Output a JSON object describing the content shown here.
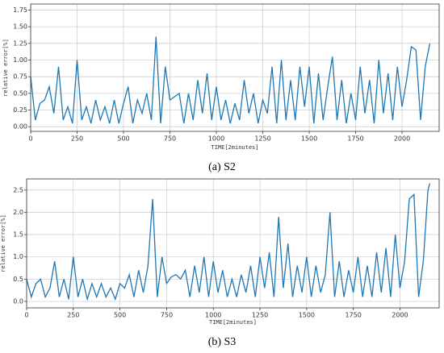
{
  "chart_data": [
    {
      "type": "line",
      "caption": "(a) S2",
      "xlabel": "TIME[2minutes]",
      "ylabel": "relative error[%]",
      "xlim": [
        0,
        2200
      ],
      "ylim": [
        -0.07,
        1.84
      ],
      "grid": true,
      "xticks": [
        0,
        250,
        500,
        750,
        1000,
        1250,
        1500,
        1750,
        2000
      ],
      "yticks": [
        {
          "value": 0,
          "label": "0.00"
        },
        {
          "value": 0.25,
          "label": "0.25"
        },
        {
          "value": 0.5,
          "label": "0.50"
        },
        {
          "value": 0.75,
          "label": "0.75"
        },
        {
          "value": 1,
          "label": "1.00"
        },
        {
          "value": 1.25,
          "label": "1.25"
        },
        {
          "value": 1.5,
          "label": "1.50"
        },
        {
          "value": 1.75,
          "label": "1.75"
        }
      ],
      "x": [
        0,
        25,
        50,
        75,
        100,
        125,
        150,
        175,
        200,
        225,
        250,
        275,
        300,
        325,
        350,
        375,
        400,
        425,
        450,
        475,
        500,
        525,
        550,
        575,
        600,
        625,
        650,
        675,
        700,
        725,
        750,
        775,
        800,
        825,
        850,
        875,
        900,
        925,
        950,
        975,
        1000,
        1025,
        1050,
        1075,
        1100,
        1125,
        1150,
        1175,
        1200,
        1225,
        1250,
        1275,
        1300,
        1325,
        1350,
        1375,
        1400,
        1425,
        1450,
        1475,
        1500,
        1525,
        1550,
        1575,
        1600,
        1625,
        1650,
        1675,
        1700,
        1725,
        1750,
        1775,
        1800,
        1825,
        1850,
        1875,
        1900,
        1925,
        1950,
        1975,
        2000,
        2025,
        2050,
        2075,
        2100,
        2125,
        2150
      ],
      "series": [
        {
          "color": "#1f77b4",
          "values": [
            0.75,
            0.1,
            0.35,
            0.4,
            0.6,
            0.2,
            0.9,
            0.1,
            0.3,
            0.05,
            1.0,
            0.1,
            0.3,
            0.05,
            0.4,
            0.1,
            0.3,
            0.05,
            0.4,
            0.05,
            0.35,
            0.6,
            0.05,
            0.4,
            0.2,
            0.5,
            0.1,
            1.35,
            0.05,
            0.9,
            0.4,
            0.45,
            0.5,
            0.05,
            0.5,
            0.1,
            0.7,
            0.2,
            0.8,
            0.1,
            0.6,
            0.1,
            0.4,
            0.05,
            0.35,
            0.1,
            0.7,
            0.2,
            0.5,
            0.05,
            0.4,
            0.2,
            0.9,
            0.05,
            1.0,
            0.1,
            0.7,
            0.1,
            0.9,
            0.3,
            0.9,
            0.05,
            0.8,
            0.1,
            0.6,
            1.05,
            0.1,
            0.7,
            0.05,
            0.5,
            0.1,
            0.9,
            0.2,
            0.7,
            0.05,
            1.0,
            0.2,
            0.8,
            0.1,
            0.9,
            0.3,
            0.7,
            1.2,
            1.15,
            0.1,
            0.9,
            1.25
          ]
        }
      ]
    },
    {
      "type": "line",
      "caption": "(b) S3",
      "xlabel": "TIME[2minutes]",
      "ylabel": "relative error[%]",
      "xlim": [
        0,
        2210
      ],
      "ylim": [
        -0.145,
        2.75
      ],
      "grid": true,
      "xticks": [
        0,
        250,
        500,
        750,
        1000,
        1250,
        1500,
        1750,
        2000
      ],
      "yticks": [
        {
          "value": 0,
          "label": "0.0"
        },
        0.5,
        {
          "value": 1,
          "label": "1.0"
        },
        1.5,
        {
          "value": 2,
          "label": "2.0"
        },
        2.5
      ],
      "x": [
        0,
        25,
        50,
        75,
        100,
        125,
        150,
        175,
        200,
        225,
        250,
        275,
        300,
        325,
        350,
        375,
        400,
        425,
        450,
        475,
        500,
        525,
        550,
        575,
        600,
        625,
        650,
        675,
        700,
        725,
        750,
        775,
        800,
        825,
        850,
        875,
        900,
        925,
        950,
        975,
        1000,
        1025,
        1050,
        1075,
        1100,
        1125,
        1150,
        1175,
        1200,
        1225,
        1250,
        1275,
        1300,
        1325,
        1350,
        1375,
        1400,
        1425,
        1450,
        1475,
        1500,
        1525,
        1550,
        1575,
        1600,
        1625,
        1650,
        1675,
        1700,
        1725,
        1750,
        1775,
        1800,
        1825,
        1850,
        1875,
        1900,
        1925,
        1950,
        1975,
        2000,
        2025,
        2050,
        2075,
        2100,
        2125,
        2150,
        2160
      ],
      "series": [
        {
          "color": "#1f77b4",
          "values": [
            0.5,
            0.1,
            0.4,
            0.5,
            0.1,
            0.3,
            0.9,
            0.1,
            0.5,
            0.05,
            1.0,
            0.1,
            0.5,
            0.05,
            0.4,
            0.1,
            0.4,
            0.1,
            0.3,
            0.05,
            0.4,
            0.3,
            0.6,
            0.1,
            0.7,
            0.2,
            0.8,
            2.3,
            0.1,
            1.0,
            0.4,
            0.55,
            0.6,
            0.5,
            0.7,
            0.1,
            0.8,
            0.2,
            1.0,
            0.1,
            0.9,
            0.2,
            0.7,
            0.1,
            0.5,
            0.1,
            0.6,
            0.2,
            0.8,
            0.1,
            1.0,
            0.3,
            1.1,
            0.1,
            1.9,
            0.3,
            1.3,
            0.1,
            0.8,
            0.2,
            1.0,
            0.1,
            0.8,
            0.2,
            0.6,
            2.0,
            0.1,
            0.9,
            0.1,
            0.7,
            0.2,
            1.0,
            0.1,
            0.8,
            0.1,
            1.1,
            0.2,
            1.2,
            0.1,
            1.5,
            0.3,
            0.9,
            2.3,
            2.4,
            0.1,
            0.9,
            2.5,
            2.65
          ]
        }
      ]
    }
  ]
}
